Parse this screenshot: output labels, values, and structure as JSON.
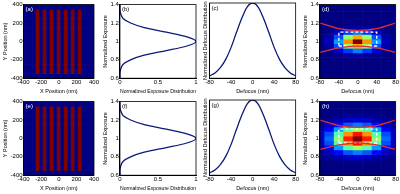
{
  "chart_data": [
    {
      "type": "heatmap",
      "annotation": "(a)",
      "x_label": "X Position (nm)",
      "y_label": "Y Position (nm)",
      "xlim": [
        -400,
        400
      ],
      "ylim": [
        -400,
        400
      ],
      "xticks": [
        -400,
        -200,
        0,
        200,
        400
      ],
      "yticks": [
        -400,
        -200,
        0,
        200,
        400
      ],
      "color": "jet",
      "x": [
        -400,
        -360,
        -320,
        -280,
        -240,
        -200,
        -160,
        -120,
        -80,
        -40,
        0,
        40,
        80,
        120,
        160,
        200,
        240,
        280,
        320,
        360,
        400
      ],
      "y": [
        -400,
        -300,
        -200,
        -100,
        0,
        100,
        200,
        300,
        400
      ],
      "cells": [
        [
          0,
          0,
          0,
          0,
          0,
          0,
          0,
          0,
          0,
          0,
          0,
          0,
          0,
          0,
          0,
          0,
          0,
          0,
          0,
          0,
          0
        ],
        [
          0,
          0,
          0,
          0,
          1,
          0,
          1,
          0,
          1,
          0,
          1,
          0,
          1,
          0,
          1,
          0,
          1,
          0,
          0,
          0,
          0
        ],
        [
          0,
          0,
          0,
          0,
          1,
          0,
          1,
          0,
          1,
          0,
          1,
          0,
          1,
          0,
          1,
          0,
          1,
          0,
          0,
          0,
          0
        ],
        [
          0,
          0,
          0,
          0,
          1,
          0,
          1,
          0,
          1,
          0,
          1,
          0,
          1,
          0,
          1,
          0,
          1,
          0,
          0,
          0,
          0
        ],
        [
          0,
          0,
          0,
          0,
          1,
          0,
          1,
          0,
          1,
          0,
          1,
          0,
          1,
          0,
          1,
          0,
          1,
          0,
          0,
          0,
          0
        ],
        [
          0,
          0,
          0,
          0,
          1,
          0,
          1,
          0,
          1,
          0,
          1,
          0,
          1,
          0,
          1,
          0,
          1,
          0,
          0,
          0,
          0
        ],
        [
          0,
          0,
          0,
          0,
          1,
          0,
          1,
          0,
          1,
          0,
          1,
          0,
          1,
          0,
          1,
          0,
          1,
          0,
          0,
          0,
          0
        ],
        [
          0,
          0,
          0,
          0,
          1,
          0,
          1,
          0,
          1,
          0,
          1,
          0,
          1,
          0,
          1,
          0,
          1,
          0,
          0,
          0,
          0
        ],
        [
          0,
          0,
          0,
          0,
          0,
          0,
          0,
          0,
          0,
          0,
          0,
          0,
          0,
          0,
          0,
          0,
          0,
          0,
          0,
          0,
          0
        ]
      ]
    },
    {
      "type": "line",
      "annotation": "(b)",
      "x_label": "Normalized Exposure Distribution",
      "y_label": "Normalized Exposure",
      "xlim": [
        0,
        1
      ],
      "ylim": [
        0.6,
        1.4
      ],
      "xticks": [
        0,
        0.5,
        1
      ],
      "yticks": [
        0.6,
        0.8,
        1,
        1.2,
        1.4
      ],
      "color": "#0a1a7a",
      "x": [
        0,
        0,
        0.01,
        0.04,
        0.14,
        0.32,
        0.61,
        0.88,
        1,
        0.88,
        0.61,
        0.32,
        0.14,
        0.04,
        0.01,
        0,
        0
      ],
      "values": [
        0.6,
        0.65,
        0.7,
        0.75,
        0.8,
        0.85,
        0.9,
        0.95,
        1,
        1.05,
        1.1,
        1.15,
        1.2,
        1.25,
        1.3,
        1.35,
        1.4
      ]
    },
    {
      "type": "line",
      "annotation": "(c)",
      "x_label": "Defocus (nm)",
      "y_label": "Normalized Defocus Distribution",
      "xlim": [
        -80,
        80
      ],
      "ylim": [
        0,
        1
      ],
      "xticks": [
        -80,
        -40,
        0,
        40,
        80
      ],
      "tick_labels": "x",
      "color": "#0a1a7a",
      "x": [
        -80,
        -70,
        -60,
        -50,
        -40,
        -30,
        -20,
        -10,
        0,
        10,
        20,
        30,
        40,
        50,
        60,
        70,
        80
      ],
      "values": [
        0.03,
        0.07,
        0.14,
        0.25,
        0.41,
        0.61,
        0.8,
        0.95,
        1,
        0.95,
        0.8,
        0.61,
        0.41,
        0.25,
        0.14,
        0.07,
        0.03
      ]
    },
    {
      "type": "heatmap",
      "annotation": "(d)",
      "x_label": "Defocus (nm)",
      "y_label": "Normalized Exposure",
      "xlim": [
        -80,
        80
      ],
      "ylim": [
        0.6,
        1.4
      ],
      "xticks": [
        -80,
        -40,
        0,
        40,
        80
      ],
      "yticks": [
        0.6,
        0.8,
        1,
        1.2,
        1.4
      ],
      "color": "jet",
      "x": [
        -80,
        -60,
        -40,
        -20,
        0,
        20,
        40,
        60,
        80
      ],
      "y": [
        0.6,
        0.65,
        0.7,
        0.75,
        0.8,
        0.85,
        0.9,
        0.95,
        1,
        1.05,
        1.1,
        1.15,
        1.2,
        1.25,
        1.3,
        1.35,
        1.4
      ],
      "cells": [
        [
          0,
          0,
          0,
          0,
          0,
          0,
          0,
          0,
          0
        ],
        [
          0,
          0,
          0,
          0,
          0,
          0,
          0,
          0,
          0
        ],
        [
          0,
          0,
          0,
          0,
          0,
          0,
          0,
          0,
          0
        ],
        [
          0,
          0,
          0,
          0,
          0,
          0,
          0,
          0,
          0
        ],
        [
          0,
          0,
          0,
          0,
          0,
          0,
          0,
          0,
          0
        ],
        [
          0,
          0,
          0.01,
          0.03,
          0.04,
          0.03,
          0.01,
          0,
          0
        ],
        [
          0,
          0.01,
          0.07,
          0.18,
          0.25,
          0.18,
          0.07,
          0.01,
          0
        ],
        [
          0,
          0.04,
          0.2,
          0.52,
          0.71,
          0.52,
          0.2,
          0.04,
          0
        ],
        [
          0.01,
          0.06,
          0.28,
          0.73,
          1,
          0.73,
          0.28,
          0.06,
          0.01
        ],
        [
          0,
          0.04,
          0.2,
          0.52,
          0.71,
          0.52,
          0.2,
          0.04,
          0
        ],
        [
          0,
          0.01,
          0.07,
          0.18,
          0.25,
          0.18,
          0.07,
          0.01,
          0
        ],
        [
          0,
          0,
          0.01,
          0.03,
          0.04,
          0.03,
          0.01,
          0,
          0
        ],
        [
          0,
          0,
          0,
          0,
          0,
          0,
          0,
          0,
          0
        ],
        [
          0,
          0,
          0,
          0,
          0,
          0,
          0,
          0,
          0
        ],
        [
          0,
          0,
          0,
          0,
          0,
          0,
          0,
          0,
          0
        ],
        [
          0,
          0,
          0,
          0,
          0,
          0,
          0,
          0,
          0
        ],
        [
          0,
          0,
          0,
          0,
          0,
          0,
          0,
          0,
          0
        ]
      ],
      "series": [
        {
          "color": "#e03030",
          "x": [
            -80,
            -40,
            0,
            40,
            80
          ],
          "values": [
            1.2,
            1.14,
            1.12,
            1.14,
            1.2
          ]
        },
        {
          "color": "#e03030",
          "x": [
            -80,
            -40,
            0,
            40,
            80
          ],
          "values": [
            0.88,
            0.93,
            0.95,
            0.93,
            0.88
          ]
        },
        {
          "color": "#ffffff",
          "line_style": "dashed",
          "x": [
            -40,
            40,
            40,
            -40,
            -40
          ],
          "values": [
            0.95,
            0.95,
            1.1,
            1.1,
            0.95
          ]
        }
      ]
    },
    {
      "type": "heatmap",
      "annotation": "(e)",
      "x_label": "X Position (nm)",
      "y_label": "Y Position (nm)",
      "xlim": [
        -400,
        400
      ],
      "ylim": [
        -400,
        400
      ],
      "xticks": [
        -400,
        -200,
        0,
        200,
        400
      ],
      "yticks": [
        -400,
        -200,
        0,
        200,
        400
      ],
      "color": "jet",
      "x": [
        -400,
        -360,
        -320,
        -280,
        -240,
        -200,
        -160,
        -120,
        -80,
        -40,
        0,
        40,
        80,
        120,
        160,
        200,
        240,
        280,
        320,
        360,
        400
      ],
      "y": [
        -400,
        -300,
        -200,
        -100,
        0,
        100,
        200,
        300,
        400
      ],
      "cells": [
        [
          0,
          0,
          0,
          0,
          0,
          0,
          0,
          0,
          0,
          0,
          0,
          0,
          0,
          0,
          0,
          0,
          0,
          0,
          0,
          0,
          0
        ],
        [
          0,
          0,
          0,
          0,
          1,
          0,
          1,
          0,
          1,
          0,
          1,
          0,
          1,
          0,
          1,
          0,
          1,
          0,
          0,
          0,
          0
        ],
        [
          0,
          0,
          0,
          0,
          1,
          0,
          1,
          0,
          1,
          0,
          1,
          0,
          1,
          0,
          1,
          0,
          1,
          0,
          0,
          0,
          0
        ],
        [
          0,
          0,
          0,
          0,
          1,
          0,
          1,
          0,
          1,
          0,
          1,
          0,
          1,
          0,
          1,
          0,
          1,
          0,
          0,
          0,
          0
        ],
        [
          0,
          0,
          0,
          0,
          1,
          0,
          1,
          0,
          1,
          0,
          1,
          0,
          1,
          0,
          1,
          0,
          1,
          0,
          0,
          0,
          0
        ],
        [
          0,
          0,
          0,
          0,
          1,
          0,
          1,
          0,
          1,
          0,
          1,
          0,
          1,
          0,
          1,
          0,
          1,
          0,
          0,
          0,
          0
        ],
        [
          0,
          0,
          0,
          0,
          1,
          0,
          1,
          0,
          1,
          0,
          1,
          0,
          1,
          0,
          1,
          0,
          1,
          0,
          0,
          0,
          0
        ],
        [
          0,
          0,
          0,
          0,
          1,
          0,
          1,
          0,
          1,
          0,
          1,
          0,
          1,
          0,
          1,
          0,
          1,
          0,
          0,
          0,
          0
        ],
        [
          0,
          0,
          0,
          0,
          0,
          0,
          0,
          0,
          0,
          0,
          0,
          0,
          0,
          0,
          0,
          0,
          0,
          0,
          0,
          0,
          0
        ]
      ]
    },
    {
      "type": "line",
      "annotation": "(f)",
      "x_label": "Normalized Exposure Distribution",
      "y_label": "Normalized Exposure",
      "xlim": [
        0,
        1
      ],
      "ylim": [
        0.6,
        1.4
      ],
      "xticks": [
        0,
        0.5,
        1
      ],
      "yticks": [
        0.6,
        0.8,
        1,
        1.2,
        1.4
      ],
      "color": "#0a1a7a",
      "x": [
        0,
        0,
        0.01,
        0.04,
        0.14,
        0.32,
        0.61,
        0.88,
        1,
        0.88,
        0.61,
        0.32,
        0.14,
        0.04,
        0.01,
        0,
        0
      ],
      "values": [
        0.6,
        0.65,
        0.7,
        0.75,
        0.8,
        0.85,
        0.9,
        0.95,
        1,
        1.05,
        1.1,
        1.15,
        1.2,
        1.25,
        1.3,
        1.35,
        1.4
      ]
    },
    {
      "type": "line",
      "annotation": "(g)",
      "x_label": "Defocus (nm)",
      "y_label": "Normalized Defocus Distribution",
      "xlim": [
        -80,
        80
      ],
      "ylim": [
        0,
        1
      ],
      "xticks": [
        -80,
        -40,
        0,
        40,
        80
      ],
      "tick_labels": "x",
      "color": "#0a1a7a",
      "x": [
        -80,
        -70,
        -60,
        -50,
        -40,
        -30,
        -20,
        -10,
        0,
        10,
        20,
        30,
        40,
        50,
        60,
        70,
        80
      ],
      "values": [
        0.03,
        0.07,
        0.14,
        0.25,
        0.41,
        0.61,
        0.8,
        0.95,
        1,
        0.95,
        0.8,
        0.61,
        0.41,
        0.25,
        0.14,
        0.07,
        0.03
      ]
    },
    {
      "type": "heatmap",
      "annotation": "(h)",
      "x_label": "Defocus (nm)",
      "y_label": "Normalized Exposure",
      "xlim": [
        -80,
        80
      ],
      "ylim": [
        0.6,
        1.4
      ],
      "xticks": [
        -80,
        -40,
        0,
        40,
        80
      ],
      "yticks": [
        0.6,
        0.8,
        1,
        1.2,
        1.4
      ],
      "color": "jet",
      "x": [
        -80,
        -60,
        -40,
        -20,
        0,
        20,
        40,
        60,
        80
      ],
      "y": [
        0.6,
        0.65,
        0.7,
        0.75,
        0.8,
        0.85,
        0.9,
        0.95,
        1,
        1.05,
        1.1,
        1.15,
        1.2,
        1.25,
        1.3,
        1.35,
        1.4
      ],
      "cells": [
        [
          0,
          0,
          0,
          0,
          0,
          0,
          0,
          0,
          0
        ],
        [
          0,
          0,
          0,
          0,
          0,
          0,
          0,
          0,
          0
        ],
        [
          0,
          0,
          0,
          0,
          0,
          0,
          0,
          0,
          0
        ],
        [
          0,
          0,
          0.01,
          0.02,
          0.02,
          0.02,
          0.01,
          0,
          0
        ],
        [
          0.01,
          0.02,
          0.04,
          0.07,
          0.09,
          0.07,
          0.04,
          0.02,
          0.01
        ],
        [
          0.02,
          0.06,
          0.13,
          0.21,
          0.25,
          0.21,
          0.13,
          0.06,
          0.02
        ],
        [
          0.04,
          0.12,
          0.28,
          0.46,
          0.54,
          0.46,
          0.28,
          0.12,
          0.04
        ],
        [
          0.06,
          0.2,
          0.45,
          0.73,
          0.86,
          0.73,
          0.45,
          0.2,
          0.06
        ],
        [
          0.07,
          0.23,
          0.52,
          0.85,
          1,
          0.85,
          0.52,
          0.23,
          0.07
        ],
        [
          0.06,
          0.2,
          0.45,
          0.73,
          0.86,
          0.73,
          0.45,
          0.2,
          0.06
        ],
        [
          0.04,
          0.12,
          0.28,
          0.46,
          0.54,
          0.46,
          0.28,
          0.12,
          0.04
        ],
        [
          0.02,
          0.06,
          0.13,
          0.21,
          0.25,
          0.21,
          0.13,
          0.06,
          0.02
        ],
        [
          0.01,
          0.02,
          0.04,
          0.07,
          0.09,
          0.07,
          0.04,
          0.02,
          0.01
        ],
        [
          0,
          0,
          0.01,
          0.02,
          0.02,
          0.02,
          0.01,
          0,
          0
        ],
        [
          0,
          0,
          0,
          0,
          0,
          0,
          0,
          0,
          0
        ],
        [
          0,
          0,
          0,
          0,
          0,
          0,
          0,
          0,
          0
        ],
        [
          0,
          0,
          0,
          0,
          0,
          0,
          0,
          0,
          0
        ]
      ],
      "series": [
        {
          "color": "#e03030",
          "x": [
            -80,
            -40,
            0,
            40,
            80
          ],
          "values": [
            1.2,
            1.14,
            1.12,
            1.14,
            1.2
          ]
        },
        {
          "color": "#e03030",
          "x": [
            -80,
            -40,
            0,
            40,
            80
          ],
          "values": [
            0.88,
            0.93,
            0.95,
            0.93,
            0.88
          ]
        },
        {
          "color": "#ffffff",
          "line_style": "dashed",
          "x": [
            -40,
            40,
            40,
            -40,
            -40
          ],
          "values": [
            0.95,
            0.95,
            1.1,
            1.1,
            0.95
          ]
        }
      ]
    }
  ]
}
